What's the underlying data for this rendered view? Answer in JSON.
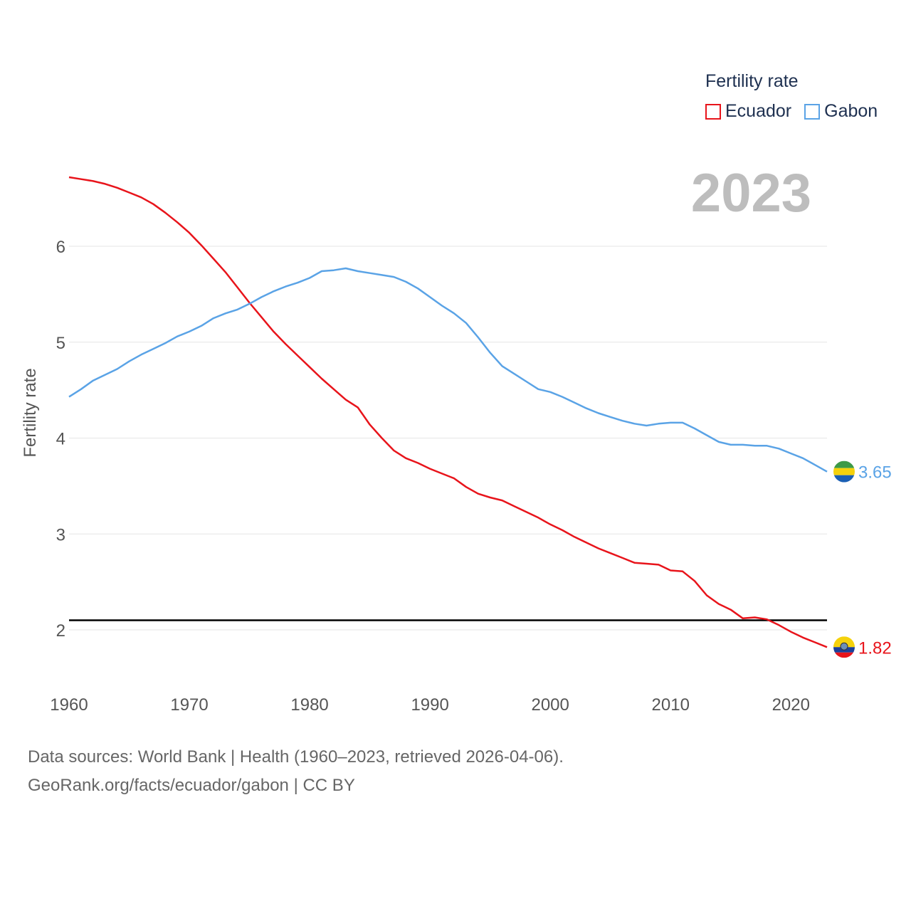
{
  "legend": {
    "title": "Fertility rate",
    "items": [
      {
        "label": "Ecuador",
        "color": "#e8141b"
      },
      {
        "label": "Gabon",
        "color": "#5aa3e6"
      }
    ]
  },
  "year_label": "2023",
  "footer": {
    "line1": "Data sources: World Bank | Health (1960–2023, retrieved 2026-04-06).",
    "line2": "GeoRank.org/facts/ecuador/gabon | CC BY"
  },
  "chart_data": {
    "type": "line",
    "title": "Fertility rate",
    "xlabel": "",
    "ylabel": "Fertility rate",
    "xlim": [
      1960,
      2023
    ],
    "ylim": [
      1.5,
      7.0
    ],
    "xticks": [
      1960,
      1970,
      1980,
      1990,
      2000,
      2010,
      2020
    ],
    "yticks": [
      2,
      3,
      4,
      5,
      6
    ],
    "reference_line": 2.1,
    "x": [
      1960,
      1961,
      1962,
      1963,
      1964,
      1965,
      1966,
      1967,
      1968,
      1969,
      1970,
      1971,
      1972,
      1973,
      1974,
      1975,
      1976,
      1977,
      1978,
      1979,
      1980,
      1981,
      1982,
      1983,
      1984,
      1985,
      1986,
      1987,
      1988,
      1989,
      1990,
      1991,
      1992,
      1993,
      1994,
      1995,
      1996,
      1997,
      1998,
      1999,
      2000,
      2001,
      2002,
      2003,
      2004,
      2005,
      2006,
      2007,
      2008,
      2009,
      2010,
      2011,
      2012,
      2013,
      2014,
      2015,
      2016,
      2017,
      2018,
      2019,
      2020,
      2021,
      2022,
      2023
    ],
    "series": [
      {
        "name": "Ecuador",
        "color": "#e8141b",
        "end_label": "1.82",
        "values": [
          6.72,
          6.7,
          6.68,
          6.65,
          6.61,
          6.56,
          6.51,
          6.44,
          6.35,
          6.25,
          6.14,
          6.01,
          5.87,
          5.73,
          5.57,
          5.41,
          5.26,
          5.11,
          4.98,
          4.86,
          4.74,
          4.62,
          4.51,
          4.4,
          4.32,
          4.14,
          4.0,
          3.87,
          3.79,
          3.74,
          3.68,
          3.63,
          3.58,
          3.49,
          3.42,
          3.38,
          3.35,
          3.29,
          3.23,
          3.17,
          3.1,
          3.04,
          2.97,
          2.91,
          2.85,
          2.8,
          2.75,
          2.7,
          2.69,
          2.68,
          2.62,
          2.61,
          2.51,
          2.36,
          2.27,
          2.21,
          2.12,
          2.13,
          2.11,
          2.05,
          1.98,
          1.92,
          1.87,
          1.82
        ]
      },
      {
        "name": "Gabon",
        "color": "#5aa3e6",
        "end_label": "3.65",
        "values": [
          4.43,
          4.51,
          4.6,
          4.66,
          4.72,
          4.8,
          4.87,
          4.93,
          4.99,
          5.06,
          5.11,
          5.17,
          5.25,
          5.3,
          5.34,
          5.4,
          5.47,
          5.53,
          5.58,
          5.62,
          5.67,
          5.74,
          5.75,
          5.77,
          5.74,
          5.72,
          5.7,
          5.68,
          5.63,
          5.56,
          5.47,
          5.38,
          5.3,
          5.2,
          5.05,
          4.89,
          4.75,
          4.67,
          4.59,
          4.51,
          4.48,
          4.43,
          4.37,
          4.31,
          4.26,
          4.22,
          4.18,
          4.15,
          4.13,
          4.15,
          4.16,
          4.16,
          4.1,
          4.03,
          3.96,
          3.93,
          3.93,
          3.92,
          3.92,
          3.89,
          3.84,
          3.79,
          3.72,
          3.65
        ]
      }
    ]
  }
}
